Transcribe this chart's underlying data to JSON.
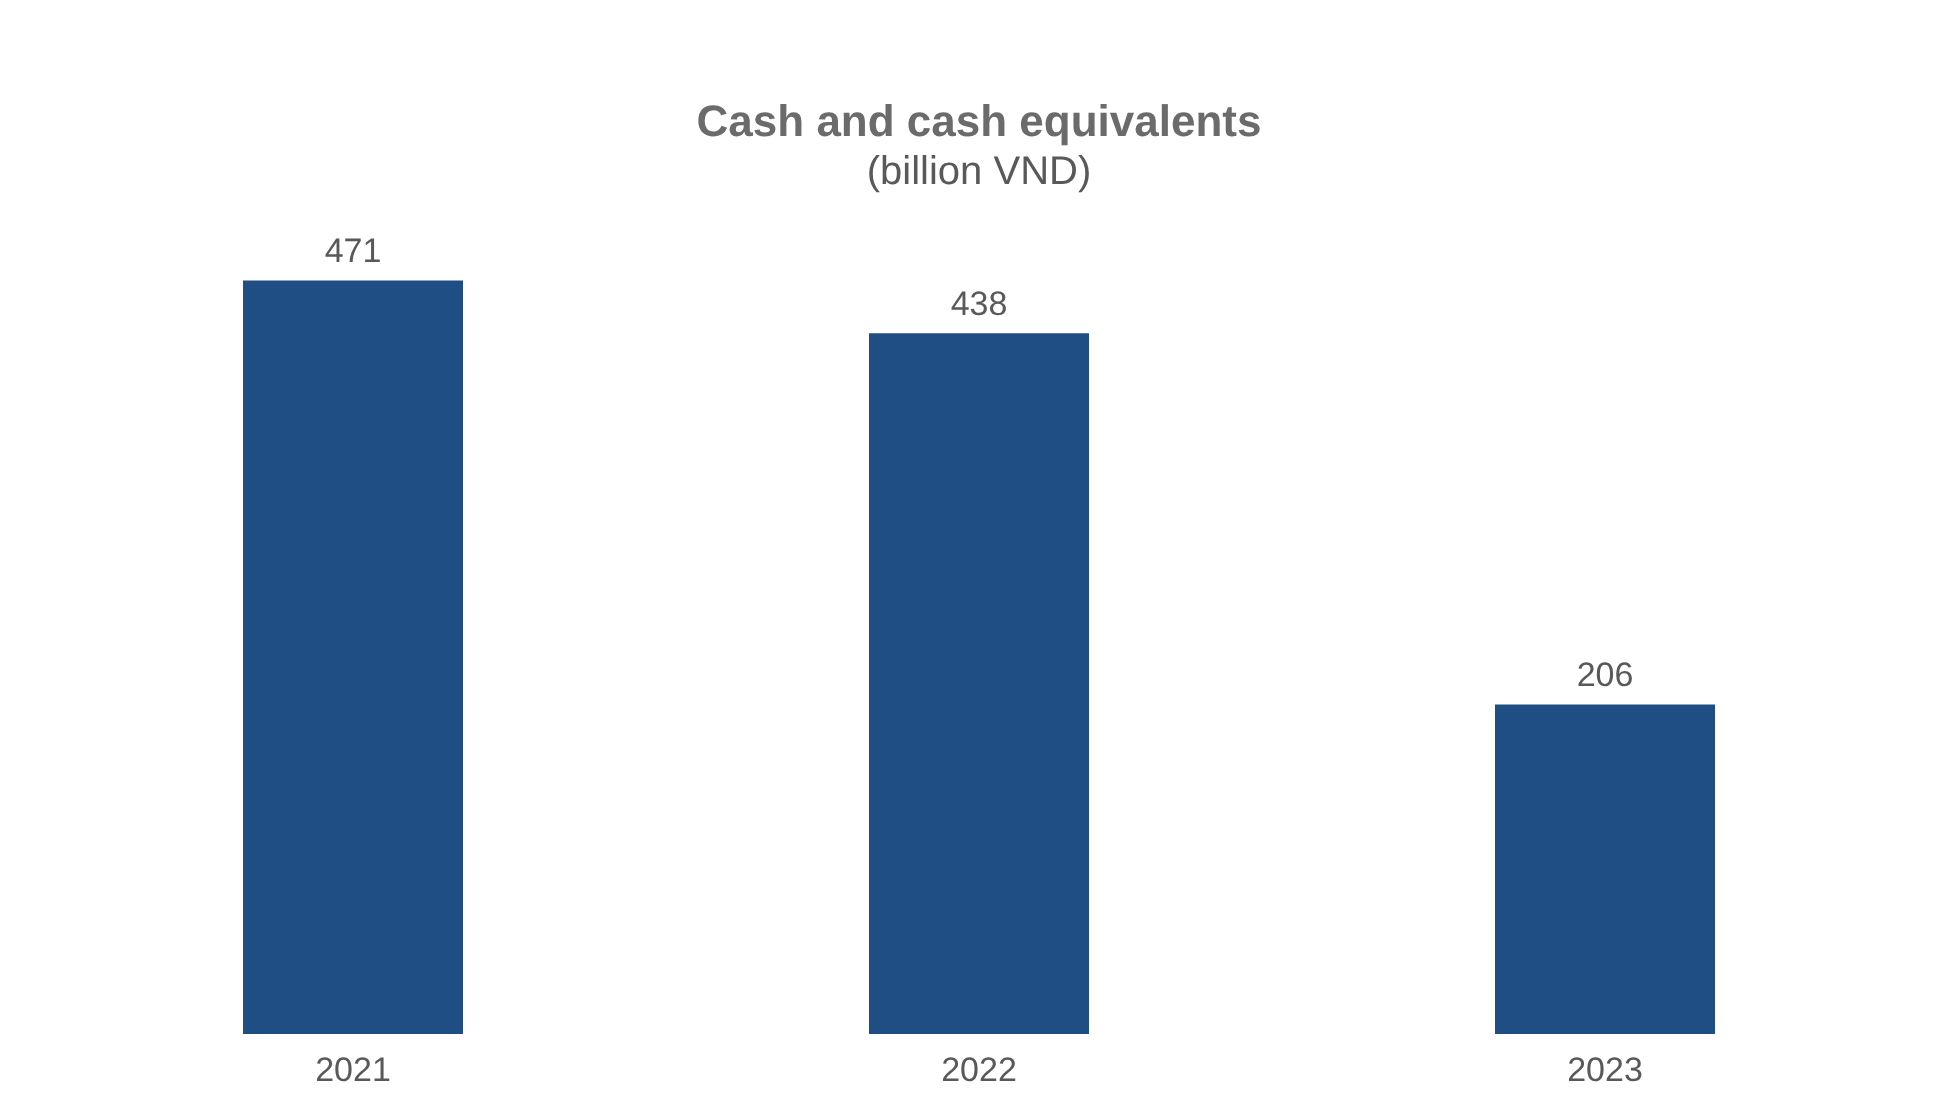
{
  "chart_data": {
    "type": "bar",
    "title": "Cash and cash equivalents",
    "subtitle": "(billion VND)",
    "categories": [
      "2021",
      "2022",
      "2023"
    ],
    "values": [
      471,
      438,
      206
    ],
    "color": "#1f4e85",
    "data_labels": true,
    "grid": false
  }
}
